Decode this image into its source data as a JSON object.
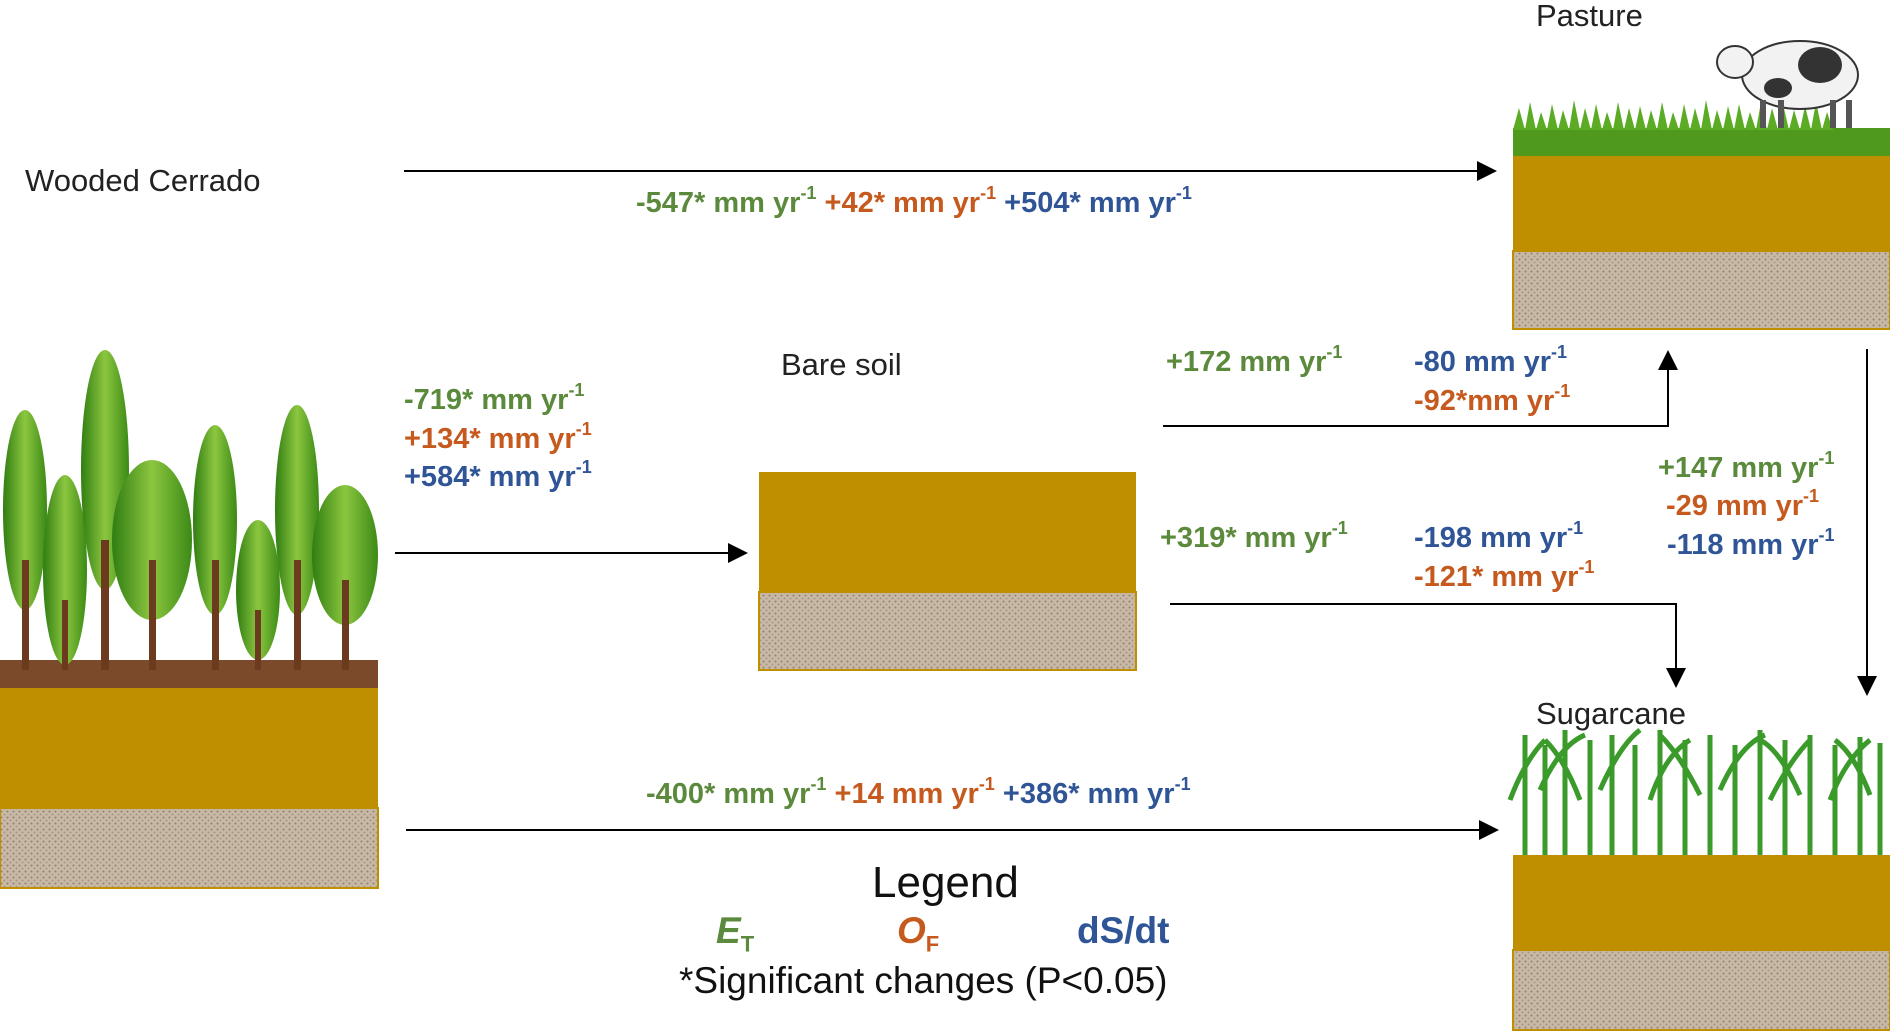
{
  "labels": {
    "wooded_cerrado": "Wooded Cerrado",
    "pasture": "Pasture",
    "bare_soil": "Bare soil",
    "sugarcane": "Sugarcane"
  },
  "transitions": {
    "cerrado_to_pasture": {
      "et": "-547* mm  yr",
      "of": "+42* mm yr",
      "ds": "+504* mm yr",
      "exp": "-1"
    },
    "cerrado_to_bare": {
      "et": "-719* mm yr",
      "of": "+134* mm yr",
      "ds": "+584* mm yr",
      "exp": "-1"
    },
    "bare_to_pasture": {
      "et": "+172 mm yr",
      "ds": "-80 mm yr",
      "of": "-92*mm yr",
      "exp": "-1"
    },
    "bare_to_sugarcane": {
      "et": "+319* mm yr",
      "ds": "-198 mm yr",
      "of": "-121* mm yr",
      "exp": "-1"
    },
    "pasture_to_sugarcane": {
      "et": "+147 mm yr",
      "of": "-29 mm yr",
      "ds": "-118 mm yr",
      "exp": "-1"
    },
    "cerrado_to_sugarcane": {
      "et": "-400* mm yr",
      "of": "+14 mm yr",
      "ds": "+386* mm yr",
      "exp": "-1"
    }
  },
  "legend": {
    "title": "Legend",
    "et_symbol": "E",
    "et_sub": "T",
    "of_symbol": "O",
    "of_sub": "F",
    "ds_label": "dS/dt",
    "note": "*Significant changes (P<0.05)"
  },
  "colors": {
    "et": "#5b8a3c",
    "of": "#c65a1e",
    "ds": "#2f5597",
    "soil_top": "#bf8f00",
    "soil_bottom": "#c8b9a6",
    "grass": "#4f9a1c",
    "arrow": "#000000"
  }
}
